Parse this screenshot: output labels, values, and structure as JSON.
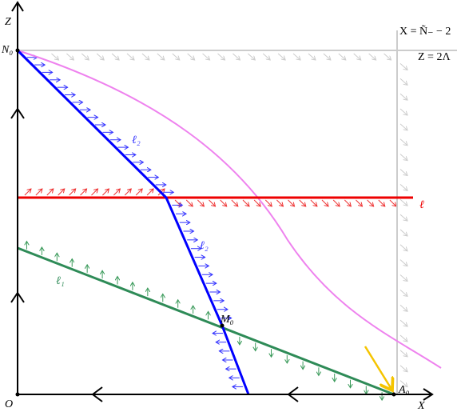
{
  "labels": {
    "z_axis": "Z",
    "x_axis": "X",
    "origin": "O",
    "n0": "N₀",
    "vertical_line": "X = Ñ₋ − 2",
    "horizontal_line": "Z = 2Λ",
    "l2_upper": "ℓ₂",
    "l2_lower": "ℓ₂",
    "l": "ℓ",
    "l1": "ℓ₁",
    "m0": "M₀",
    "a0": "A₀"
  }
}
